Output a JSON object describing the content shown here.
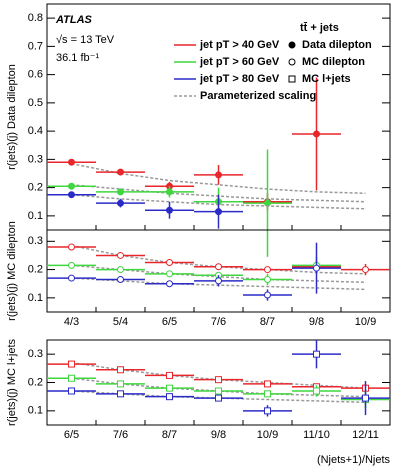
{
  "chart_data": [
    {
      "type": "errorbar",
      "name": "Data dilepton",
      "marker": "filled-circle",
      "ylabel": "r(jets)(j) Data dilepton",
      "annotations": [
        "ATLAS",
        "√s = 13 TeV",
        "36.1 fb⁻¹"
      ],
      "legend_title": "tt̄ + jets",
      "fit_name": "Parameterized scaling",
      "fit_color": "#999999",
      "ylim": [
        0.05,
        0.85
      ],
      "yticks": [
        0.1,
        0.2,
        0.3,
        0.4,
        0.5,
        0.6,
        0.7,
        0.8
      ],
      "series": [
        {
          "name": "jet pT > 40 GeV",
          "color": "#e8262b",
          "values": [
            0.29,
            0.255,
            0.205,
            0.245,
            0.15,
            0.39,
            null
          ],
          "errors": [
            0.005,
            0.008,
            0.015,
            0.035,
            0.03,
            0.2,
            null
          ],
          "fit": [
            0.285,
            0.25,
            0.225,
            0.21,
            0.195,
            0.185,
            0.18
          ]
        },
        {
          "name": "jet pT > 60 GeV",
          "color": "#3fd63f",
          "values": [
            0.205,
            0.185,
            0.185,
            0.15,
            0.145,
            null,
            null
          ],
          "errors": [
            0.005,
            0.01,
            0.02,
            0.05,
            0.19,
            null,
            null
          ],
          "fit": [
            0.21,
            0.195,
            0.18,
            0.17,
            0.16,
            0.155,
            0.15
          ]
        },
        {
          "name": "jet pT > 80 GeV",
          "color": "#2b2bc8",
          "values": [
            0.175,
            0.145,
            0.12,
            0.115,
            null,
            null,
            null
          ],
          "errors": [
            0.008,
            0.015,
            0.03,
            0.06,
            null,
            null,
            null
          ],
          "fit": [
            0.175,
            0.16,
            0.15,
            0.14,
            0.135,
            0.13,
            0.125
          ]
        }
      ]
    },
    {
      "type": "errorbar",
      "name": "MC dilepton",
      "marker": "open-circle",
      "ylabel": "r(jets)(j) MC dilepton",
      "categories": [
        "4/3",
        "5/4",
        "6/5",
        "7/6",
        "8/7",
        "9/8",
        "10/9"
      ],
      "ylim": [
        0.05,
        0.34
      ],
      "yticks": [
        0.1,
        0.2,
        0.3
      ],
      "series": [
        {
          "color": "#e8262b",
          "values": [
            0.28,
            0.25,
            0.225,
            0.21,
            0.2,
            0.21,
            0.2
          ],
          "errors": [
            0.003,
            0.003,
            0.004,
            0.006,
            0.01,
            0.02,
            0.02
          ],
          "fit": [
            0.285,
            0.25,
            0.225,
            0.21,
            0.2,
            0.19,
            0.185
          ]
        },
        {
          "color": "#3fd63f",
          "values": [
            0.215,
            0.2,
            0.185,
            0.18,
            0.165,
            0.215,
            null
          ],
          "errors": [
            0.003,
            0.004,
            0.006,
            0.01,
            0.02,
            0.03,
            null
          ],
          "fit": [
            0.215,
            0.2,
            0.185,
            0.175,
            0.165,
            0.16,
            0.155
          ]
        },
        {
          "color": "#2b2bc8",
          "values": [
            0.17,
            0.165,
            0.15,
            0.16,
            0.11,
            0.205,
            null
          ],
          "errors": [
            0.004,
            0.006,
            0.01,
            0.02,
            0.02,
            0.09,
            null
          ],
          "fit": [
            0.17,
            0.16,
            0.15,
            0.145,
            0.14,
            0.135,
            0.13
          ]
        }
      ]
    },
    {
      "type": "errorbar",
      "name": "MC l+jets",
      "marker": "open-square",
      "ylabel": "r(jets)(j) MC l+jets",
      "xlabel": "(Njets+1)/Njets",
      "categories": [
        "6/5",
        "7/6",
        "8/7",
        "9/8",
        "10/9",
        "11/10",
        "12/11"
      ],
      "ylim": [
        0.05,
        0.35
      ],
      "yticks": [
        0.1,
        0.2,
        0.3
      ],
      "series": [
        {
          "color": "#e8262b",
          "values": [
            0.265,
            0.245,
            0.225,
            0.21,
            0.195,
            0.185,
            0.18
          ],
          "errors": [
            0.002,
            0.002,
            0.003,
            0.004,
            0.006,
            0.01,
            0.015
          ],
          "fit": [
            0.27,
            0.245,
            0.225,
            0.21,
            0.2,
            0.19,
            0.18
          ]
        },
        {
          "color": "#3fd63f",
          "values": [
            0.215,
            0.195,
            0.18,
            0.17,
            0.16,
            0.17,
            0.14
          ],
          "errors": [
            0.002,
            0.003,
            0.004,
            0.006,
            0.01,
            0.02,
            0.03
          ],
          "fit": [
            0.215,
            0.195,
            0.18,
            0.17,
            0.16,
            0.155,
            0.15
          ]
        },
        {
          "color": "#2b2bc8",
          "values": [
            0.17,
            0.16,
            0.15,
            0.145,
            0.1,
            0.3,
            0.145
          ],
          "errors": [
            0.003,
            0.004,
            0.006,
            0.01,
            0.02,
            0.05,
            0.06
          ],
          "fit": [
            0.17,
            0.16,
            0.15,
            0.145,
            0.14,
            0.135,
            0.13
          ]
        }
      ]
    }
  ]
}
